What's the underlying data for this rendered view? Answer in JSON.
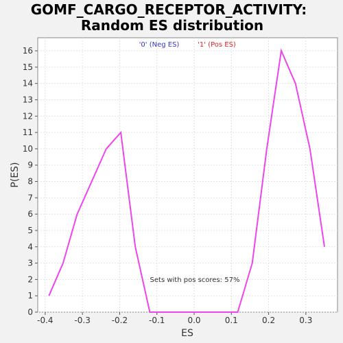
{
  "chart_data": {
    "type": "line",
    "title_lines": [
      "GOMF_CARGO_RECEPTOR_ACTIVITY:",
      "Random ES distribution"
    ],
    "xlabel": "ES",
    "ylabel": "P(ES)",
    "xlim": [
      -0.42,
      0.385
    ],
    "ylim": [
      0,
      16.8
    ],
    "x_ticks": [
      -0.4,
      -0.3,
      -0.2,
      -0.1,
      0.0,
      0.1,
      0.2,
      0.3
    ],
    "x_tick_labels": [
      "-0.4",
      "-0.3",
      "-0.2",
      "-0.1",
      "0.0",
      "0.1",
      "0.2",
      "0.3"
    ],
    "y_ticks": [
      0,
      1,
      2,
      3,
      4,
      5,
      6,
      7,
      8,
      9,
      10,
      11,
      12,
      13,
      14,
      15,
      16
    ],
    "y_tick_labels": [
      "0",
      "1",
      "2",
      "3",
      "4",
      "5",
      "6",
      "7",
      "8",
      "9",
      "10",
      "11",
      "12",
      "13",
      "14",
      "15",
      "16"
    ],
    "grid": true,
    "legend": [
      {
        "label": "'0' (Neg ES)",
        "color": "#3333cc"
      },
      {
        "label": "'1' (Pos ES)",
        "color": "#dd2222"
      }
    ],
    "annotation": "Sets with pos scores: 57%",
    "series": [
      {
        "color": "#ee44ee",
        "x": [
          -0.39,
          -0.352,
          -0.314,
          -0.236,
          -0.197,
          -0.158,
          -0.119,
          0.117,
          0.156,
          0.195,
          0.234,
          0.272,
          0.311,
          0.35
        ],
        "y": [
          1,
          3,
          6,
          10,
          11,
          4,
          0,
          0,
          3,
          10,
          16,
          14,
          10,
          4
        ]
      }
    ]
  }
}
